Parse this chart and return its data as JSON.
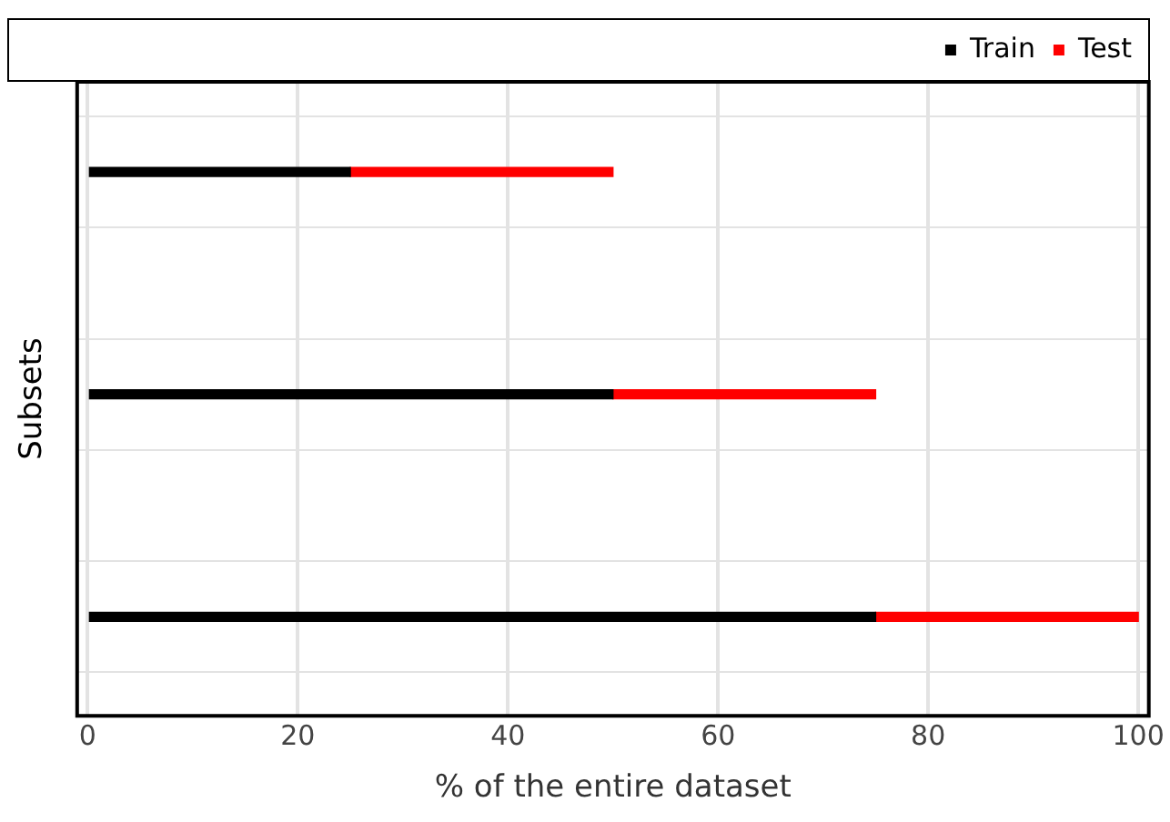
{
  "chart_data": {
    "type": "bar",
    "orientation": "horizontal",
    "stacked": true,
    "xlabel": "% of the entire dataset",
    "ylabel": "Subsets",
    "categories": [
      null,
      null,
      null
    ],
    "series": [
      {
        "name": "Train",
        "color": "#000000",
        "values": [
          25,
          50,
          75
        ]
      },
      {
        "name": "Test",
        "color": "#ff0000",
        "values": [
          25,
          25,
          25
        ]
      }
    ],
    "xlim": [
      -1,
      101
    ],
    "xticks": [
      0,
      20,
      40,
      60,
      80,
      100
    ],
    "grid": true,
    "legend": "top right"
  }
}
